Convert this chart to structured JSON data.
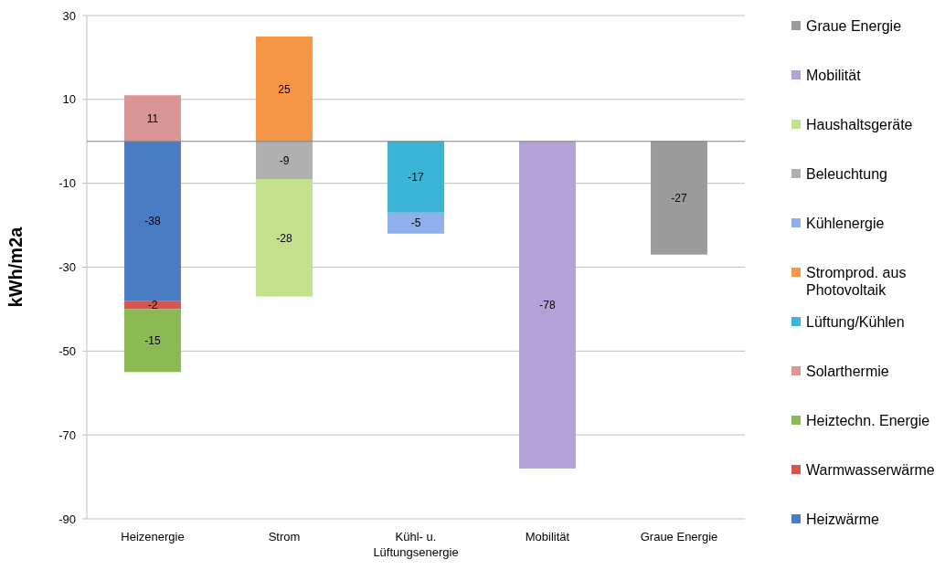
{
  "chart_data": {
    "type": "bar",
    "stacked": true,
    "ylabel": "kWh/m2a",
    "categories": [
      "Heizenergie",
      "Strom",
      "Kühl- u. Lüftungsenergie",
      "Mobilität",
      "Graue Energie"
    ],
    "series": [
      {
        "name": "Heizwärme",
        "color": "#4a7cc4",
        "values": [
          -38,
          null,
          null,
          null,
          null
        ]
      },
      {
        "name": "Warmwasserwärme",
        "color": "#d9534f",
        "values": [
          -2,
          null,
          null,
          null,
          null
        ]
      },
      {
        "name": "Heiztechn. Energie",
        "color": "#8cba52",
        "values": [
          -15,
          null,
          null,
          null,
          null
        ]
      },
      {
        "name": "Solarthermie",
        "color": "#d99694",
        "values": [
          11,
          null,
          null,
          null,
          null
        ]
      },
      {
        "name": "Lüftung/Kühlen",
        "color": "#3bb4d6",
        "values": [
          null,
          null,
          -17,
          null,
          null
        ]
      },
      {
        "name": "Stromprod. aus Photovoltaik",
        "color": "#f79646",
        "values": [
          null,
          25,
          null,
          null,
          null
        ]
      },
      {
        "name": "Kühlenergie",
        "color": "#8fb0ea",
        "values": [
          null,
          null,
          -5,
          null,
          null
        ]
      },
      {
        "name": "Beleuchtung",
        "color": "#b0b0b0",
        "values": [
          null,
          -9,
          null,
          null,
          null
        ]
      },
      {
        "name": "Haushaltsgeräte",
        "color": "#c3e08c",
        "values": [
          null,
          -28,
          null,
          null,
          null
        ]
      },
      {
        "name": "Mobilität",
        "color": "#b3a2d8",
        "values": [
          null,
          null,
          null,
          -78,
          null
        ]
      },
      {
        "name": "Graue Energie",
        "color": "#9b9b9b",
        "values": [
          null,
          null,
          null,
          null,
          -27
        ]
      }
    ],
    "ylim": [
      -90,
      30
    ],
    "yticks": [
      -90,
      -70,
      -50,
      -30,
      -10,
      10,
      30
    ],
    "grid": "y",
    "legend": "right",
    "data_labels": true
  }
}
